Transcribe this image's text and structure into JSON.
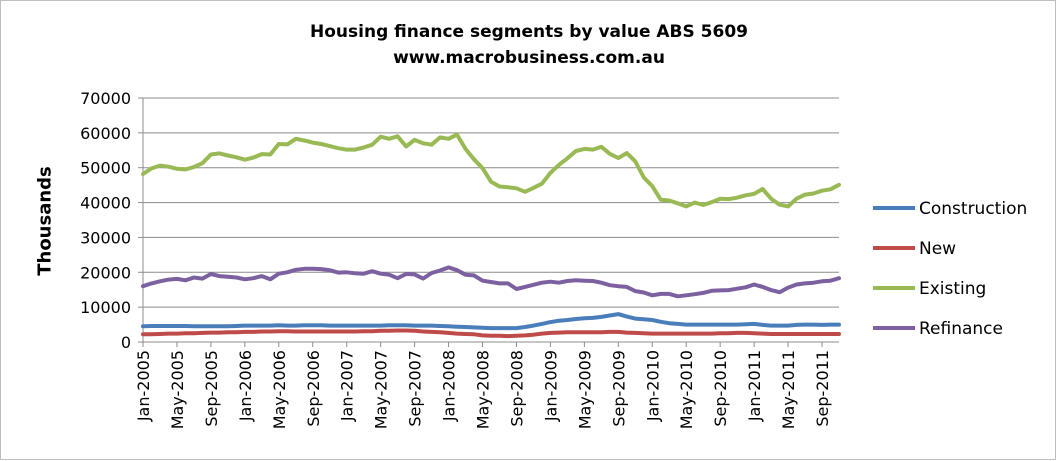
{
  "chart_data": {
    "type": "line",
    "title": "Housing finance segments by value ABS 5609",
    "subtitle": "www.macrobusiness.com.au",
    "xlabel": "",
    "ylabel": "Thousands",
    "ylim": [
      0,
      70000
    ],
    "yticks": [
      0,
      10000,
      20000,
      30000,
      40000,
      50000,
      60000,
      70000
    ],
    "xtick_labels": [
      "Jan-2005",
      "May-2005",
      "Sep-2005",
      "Jan-2006",
      "May-2006",
      "Sep-2006",
      "Jan-2007",
      "May-2007",
      "Sep-2007",
      "Jan-2008",
      "May-2008",
      "Sep-2008",
      "Jan-2009",
      "May-2009",
      "Sep-2009",
      "Jan-2010",
      "May-2010",
      "Sep-2010",
      "Jan-2011",
      "May-2011",
      "Sep-2011"
    ],
    "x_start": "Jan-2005",
    "x_end": "Sep-2011",
    "grid": "horizontal",
    "legend_position": "right",
    "series": [
      {
        "name": "Construction",
        "color": "#4a7ebb",
        "values": [
          4500,
          4600,
          4600,
          4600,
          4600,
          4600,
          4500,
          4500,
          4500,
          4500,
          4500,
          4600,
          4700,
          4700,
          4700,
          4700,
          4800,
          4700,
          4700,
          4800,
          4800,
          4800,
          4700,
          4700,
          4700,
          4700,
          4700,
          4700,
          4700,
          4800,
          4800,
          4800,
          4700,
          4700,
          4700,
          4600,
          4500,
          4400,
          4300,
          4200,
          4100,
          4000,
          4000,
          4000,
          4000,
          4300,
          4700,
          5200,
          5700,
          6100,
          6300,
          6600,
          6800,
          6900,
          7200,
          7600,
          8000,
          7300,
          6700,
          6500,
          6300,
          5800,
          5400,
          5200,
          5000,
          5000,
          5000,
          5000,
          5000,
          5000,
          5000,
          5100,
          5200,
          4900,
          4700,
          4700,
          4700,
          4900,
          5000,
          5000,
          4900,
          5000,
          5000
        ]
      },
      {
        "name": "New",
        "color": "#be4b48",
        "values": [
          2200,
          2200,
          2300,
          2400,
          2400,
          2500,
          2500,
          2600,
          2700,
          2700,
          2800,
          2800,
          2900,
          2900,
          3000,
          3000,
          3100,
          3100,
          3000,
          3000,
          3000,
          3000,
          3000,
          3000,
          3000,
          3000,
          3100,
          3100,
          3200,
          3200,
          3300,
          3300,
          3200,
          3000,
          2900,
          2800,
          2600,
          2400,
          2300,
          2200,
          1900,
          1800,
          1800,
          1700,
          1800,
          1900,
          2100,
          2400,
          2600,
          2700,
          2800,
          2800,
          2800,
          2800,
          2800,
          2900,
          2900,
          2700,
          2600,
          2500,
          2400,
          2400,
          2400,
          2400,
          2400,
          2400,
          2400,
          2400,
          2500,
          2500,
          2600,
          2600,
          2500,
          2400,
          2300,
          2300,
          2300,
          2300,
          2300,
          2300,
          2300,
          2300,
          2300
        ]
      },
      {
        "name": "Existing",
        "color": "#98b954",
        "values": [
          48200,
          49800,
          50600,
          50300,
          49700,
          49500,
          50200,
          51300,
          53800,
          54100,
          53500,
          53000,
          52300,
          52900,
          53900,
          53800,
          56800,
          56700,
          58300,
          57800,
          57200,
          56800,
          56200,
          55600,
          55200,
          55200,
          55800,
          56600,
          58900,
          58300,
          59000,
          56100,
          58000,
          57000,
          56600,
          58700,
          58300,
          59500,
          55400,
          52400,
          49900,
          46000,
          44600,
          44400,
          44100,
          43100,
          44200,
          45400,
          48500,
          50800,
          52700,
          54800,
          55400,
          55200,
          56000,
          54000,
          52800,
          54200,
          51800,
          47200,
          44700,
          40800,
          40600,
          39800,
          38900,
          40000,
          39300,
          40100,
          41100,
          41000,
          41400,
          42100,
          42500,
          43900,
          41100,
          39400,
          38900,
          41100,
          42300,
          42600,
          43400,
          43800,
          45100
        ]
      },
      {
        "name": "Refinance",
        "color": "#7d60a0",
        "values": [
          16000,
          16800,
          17400,
          17900,
          18100,
          17700,
          18500,
          18200,
          19500,
          18900,
          18700,
          18500,
          18000,
          18300,
          18900,
          18000,
          19600,
          20000,
          20700,
          21000,
          21000,
          20900,
          20600,
          19900,
          20000,
          19700,
          19600,
          20300,
          19600,
          19300,
          18300,
          19500,
          19400,
          18200,
          19800,
          20500,
          21400,
          20600,
          19300,
          19100,
          17600,
          17200,
          16800,
          16800,
          15200,
          15800,
          16400,
          17000,
          17300,
          17000,
          17500,
          17700,
          17600,
          17500,
          17000,
          16300,
          16000,
          15800,
          14600,
          14200,
          13400,
          13800,
          13800,
          13100,
          13400,
          13700,
          14100,
          14700,
          14800,
          14900,
          15300,
          15700,
          16500,
          15800,
          14900,
          14300,
          15600,
          16500,
          16800,
          17000,
          17400,
          17600,
          18300
        ]
      }
    ]
  }
}
